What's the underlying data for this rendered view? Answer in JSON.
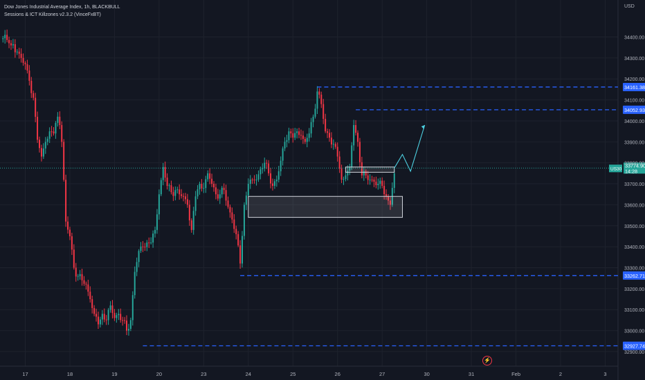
{
  "header": {
    "title": "Dow Jones Industrial Average Index, 1h, BLACKBULL",
    "indicator": "Sessions & ICT Killzones v2.3.2 (VinceFxBT)"
  },
  "badges": {
    "symbol": "US30",
    "price": "33774.90",
    "countdown": "14:28",
    "lightning_icon": "lightning-icon"
  },
  "colors": {
    "background": "#131722",
    "up": "#26a69a",
    "down": "#f23645",
    "level_line": "#2962ff",
    "text": "#b2b5be"
  },
  "chart_data": {
    "type": "candlestick",
    "currency": "USD",
    "ylim": [
      32880,
      34540
    ],
    "y_ticks": [
      32900,
      33000,
      33100,
      33200,
      33300,
      33400,
      33500,
      33600,
      33700,
      33800,
      33900,
      34000,
      34100,
      34200,
      34300,
      34400
    ],
    "y_tick_labels": [
      "32900.00",
      "33000.00",
      "33100.00",
      "33200.00",
      "33300.00",
      "33400.00",
      "33500.00",
      "33600.00",
      "33700.00",
      "33800.00",
      "33900.00",
      "34000.00",
      "34100.00",
      "34200.00",
      "34300.00",
      "34400.00"
    ],
    "x_tick_labels": [
      "17",
      "18",
      "19",
      "20",
      "23",
      "24",
      "25",
      "26",
      "27",
      "30",
      "31",
      "Feb",
      "2",
      "3"
    ],
    "x_tick_bar_index": [
      0,
      22,
      44,
      66,
      88,
      110,
      132,
      154,
      176,
      198,
      220,
      242,
      264,
      286
    ],
    "anchors": [
      [
        -12,
        34390
      ],
      [
        -10,
        34410
      ],
      [
        -7,
        34360
      ],
      [
        -4,
        34330
      ],
      [
        -2,
        34300
      ],
      [
        0,
        34270
      ],
      [
        1,
        34240
      ],
      [
        4,
        34110
      ],
      [
        6,
        33910
      ],
      [
        8,
        33830
      ],
      [
        10,
        33900
      ],
      [
        12,
        33950
      ],
      [
        14,
        33940
      ],
      [
        16,
        34020
      ],
      [
        17,
        33980
      ],
      [
        18,
        33900
      ],
      [
        20,
        33520
      ],
      [
        22,
        33450
      ],
      [
        24,
        33300
      ],
      [
        26,
        33260
      ],
      [
        28,
        33240
      ],
      [
        30,
        33220
      ],
      [
        32,
        33150
      ],
      [
        34,
        33080
      ],
      [
        36,
        33030
      ],
      [
        38,
        33080
      ],
      [
        40,
        33050
      ],
      [
        42,
        33120
      ],
      [
        44,
        33060
      ],
      [
        46,
        33080
      ],
      [
        48,
        33050
      ],
      [
        50,
        33000
      ],
      [
        52,
        33050
      ],
      [
        54,
        33280
      ],
      [
        56,
        33380
      ],
      [
        58,
        33400
      ],
      [
        60,
        33420
      ],
      [
        62,
        33420
      ],
      [
        64,
        33480
      ],
      [
        66,
        33650
      ],
      [
        68,
        33780
      ],
      [
        70,
        33690
      ],
      [
        72,
        33660
      ],
      [
        74,
        33670
      ],
      [
        76,
        33650
      ],
      [
        78,
        33640
      ],
      [
        80,
        33600
      ],
      [
        82,
        33480
      ],
      [
        84,
        33640
      ],
      [
        86,
        33700
      ],
      [
        88,
        33680
      ],
      [
        90,
        33750
      ],
      [
        92,
        33700
      ],
      [
        94,
        33650
      ],
      [
        96,
        33650
      ],
      [
        98,
        33670
      ],
      [
        100,
        33590
      ],
      [
        102,
        33530
      ],
      [
        104,
        33460
      ],
      [
        106,
        33320
      ],
      [
        108,
        33600
      ],
      [
        110,
        33700
      ],
      [
        112,
        33720
      ],
      [
        114,
        33720
      ],
      [
        116,
        33770
      ],
      [
        118,
        33800
      ],
      [
        120,
        33750
      ],
      [
        122,
        33690
      ],
      [
        124,
        33720
      ],
      [
        126,
        33810
      ],
      [
        128,
        33900
      ],
      [
        130,
        33950
      ],
      [
        132,
        33920
      ],
      [
        134,
        33950
      ],
      [
        136,
        33930
      ],
      [
        138,
        33900
      ],
      [
        140,
        33940
      ],
      [
        142,
        34020
      ],
      [
        144,
        34140
      ],
      [
        146,
        34080
      ],
      [
        148,
        33950
      ],
      [
        150,
        33920
      ],
      [
        152,
        33890
      ],
      [
        154,
        33830
      ],
      [
        156,
        33720
      ],
      [
        158,
        33740
      ],
      [
        160,
        33780
      ],
      [
        162,
        33980
      ],
      [
        164,
        33900
      ],
      [
        166,
        33740
      ],
      [
        168,
        33740
      ],
      [
        170,
        33720
      ],
      [
        172,
        33710
      ],
      [
        174,
        33700
      ],
      [
        176,
        33690
      ],
      [
        178,
        33640
      ],
      [
        180,
        33600
      ],
      [
        182,
        33750
      ]
    ],
    "levels": [
      {
        "label": "34161.38",
        "value": 34161.38
      },
      {
        "label": "34052.93",
        "value": 34052.93
      },
      {
        "label": "33262.71",
        "value": 33262.71
      },
      {
        "label": "32927.74",
        "value": 32927.74
      }
    ],
    "zones": [
      {
        "name": "demand-zone",
        "from_bar": 110,
        "to_bar": 186,
        "low": 33540,
        "high": 33640
      },
      {
        "name": "target-box",
        "from_bar": 158,
        "to_bar": 182,
        "low": 33755,
        "high": 33780
      }
    ],
    "current_price": 33774.9,
    "projection": [
      [
        182,
        33774.9
      ],
      [
        186,
        33840
      ],
      [
        190,
        33760
      ],
      [
        197,
        33980
      ]
    ]
  }
}
